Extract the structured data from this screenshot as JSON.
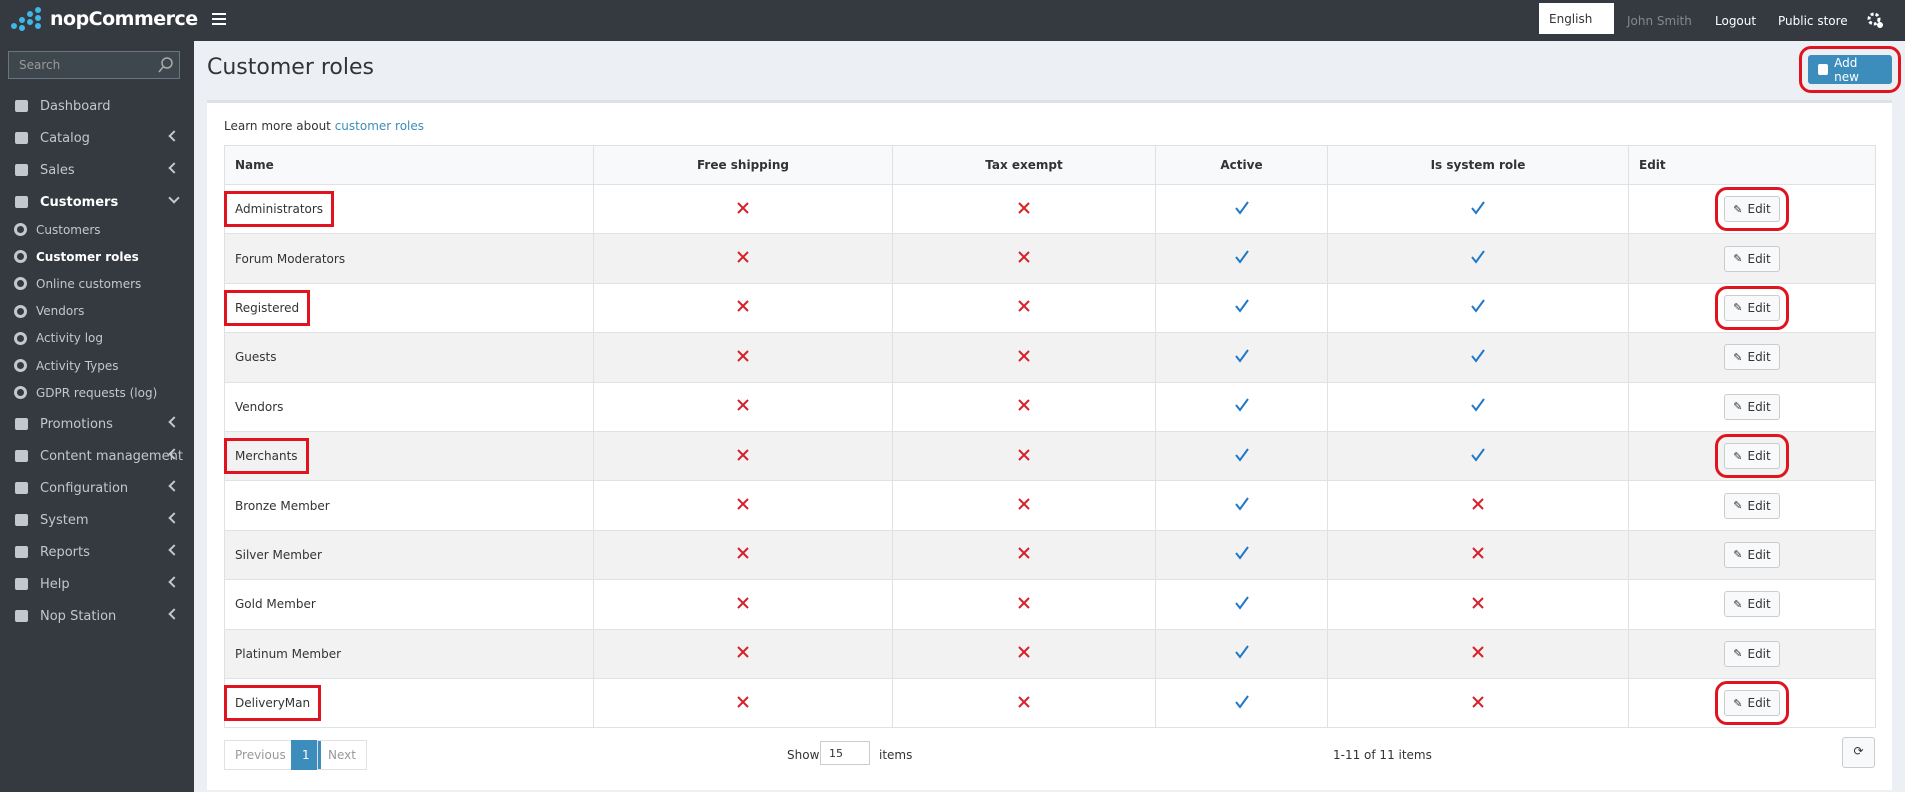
{
  "header": {
    "logo": "nopCommerce",
    "language": "English",
    "user": "John Smith",
    "logout": "Logout",
    "public_store": "Public store"
  },
  "sidebar": {
    "search_placeholder": "Search",
    "items": [
      {
        "label": "Dashboard"
      },
      {
        "label": "Catalog",
        "expandable": true
      },
      {
        "label": "Sales",
        "expandable": true
      },
      {
        "label": "Customers",
        "expandable": true,
        "expanded": true,
        "children": [
          "Customers",
          "Customer roles",
          "Online customers",
          "Vendors",
          "Activity log",
          "Activity Types",
          "GDPR requests (log)"
        ],
        "active_child": 1
      },
      {
        "label": "Promotions",
        "expandable": true
      },
      {
        "label": "Content management",
        "expandable": true
      },
      {
        "label": "Configuration",
        "expandable": true
      },
      {
        "label": "System",
        "expandable": true
      },
      {
        "label": "Reports",
        "expandable": true
      },
      {
        "label": "Help",
        "expandable": true
      },
      {
        "label": "Nop Station",
        "expandable": true
      }
    ]
  },
  "page": {
    "title": "Customer roles",
    "add_new": "Add new",
    "add_new_highlighted": true,
    "learn_more": "Learn more about",
    "learn_more_link": "customer roles"
  },
  "table": {
    "columns": [
      "Name",
      "Free shipping",
      "Tax exempt",
      "Active",
      "Is system role",
      "Edit"
    ],
    "edit_label": "Edit",
    "rows": [
      {
        "name": "Administrators",
        "free_shipping": false,
        "tax_exempt": false,
        "active": true,
        "is_system_role": true,
        "highlighted": true
      },
      {
        "name": "Forum Moderators",
        "free_shipping": false,
        "tax_exempt": false,
        "active": true,
        "is_system_role": true,
        "highlighted": false
      },
      {
        "name": "Registered",
        "free_shipping": false,
        "tax_exempt": false,
        "active": true,
        "is_system_role": true,
        "highlighted": true
      },
      {
        "name": "Guests",
        "free_shipping": false,
        "tax_exempt": false,
        "active": true,
        "is_system_role": true,
        "highlighted": false
      },
      {
        "name": "Vendors",
        "free_shipping": false,
        "tax_exempt": false,
        "active": true,
        "is_system_role": true,
        "highlighted": false
      },
      {
        "name": "Merchants",
        "free_shipping": false,
        "tax_exempt": false,
        "active": true,
        "is_system_role": true,
        "highlighted": true
      },
      {
        "name": "Bronze Member",
        "free_shipping": false,
        "tax_exempt": false,
        "active": true,
        "is_system_role": false,
        "highlighted": false
      },
      {
        "name": "Silver Member",
        "free_shipping": false,
        "tax_exempt": false,
        "active": true,
        "is_system_role": false,
        "highlighted": false
      },
      {
        "name": "Gold Member",
        "free_shipping": false,
        "tax_exempt": false,
        "active": true,
        "is_system_role": false,
        "highlighted": false
      },
      {
        "name": "Platinum Member",
        "free_shipping": false,
        "tax_exempt": false,
        "active": true,
        "is_system_role": false,
        "highlighted": false
      },
      {
        "name": "DeliveryMan",
        "free_shipping": false,
        "tax_exempt": false,
        "active": true,
        "is_system_role": false,
        "highlighted": true
      }
    ]
  },
  "pager": {
    "previous": "Previous",
    "page": "1",
    "next": "Next",
    "show": "Show",
    "page_size": "15",
    "items": "items",
    "summary": "1-11 of 11 items"
  }
}
